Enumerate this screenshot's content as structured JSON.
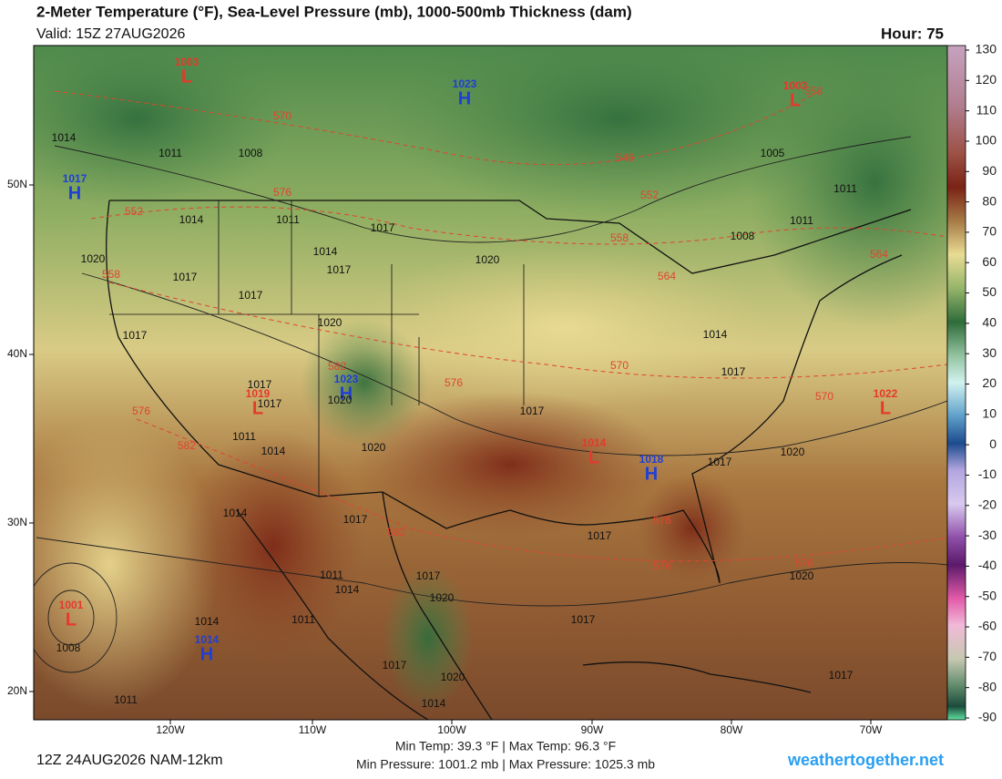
{
  "header": {
    "title": "2-Meter Temperature (°F), Sea-Level Pressure (mb), 1000-500mb Thickness (dam)",
    "valid": "Valid: 15Z 27AUG2026",
    "hour": "Hour: 75"
  },
  "map": {
    "lon_labels": [
      "120W",
      "110W",
      "100W",
      "90W",
      "80W",
      "70W"
    ],
    "lat_labels": [
      "50N",
      "40N",
      "30N",
      "20N"
    ],
    "pressure_centers": [
      {
        "symbol": "L",
        "value": "1003",
        "color": "#e5392c"
      },
      {
        "symbol": "H",
        "value": "1023",
        "color": "#1f3fd6"
      },
      {
        "symbol": "L",
        "value": "1003",
        "color": "#e5392c"
      },
      {
        "symbol": "H",
        "value": "1017",
        "color": "#1f3fd6"
      },
      {
        "symbol": "H",
        "value": "1023",
        "color": "#1f3fd6"
      },
      {
        "symbol": "L",
        "value": "1019",
        "color": "#e5392c"
      },
      {
        "symbol": "L",
        "value": "1014",
        "color": "#e5392c"
      },
      {
        "symbol": "H",
        "value": "1018",
        "color": "#1f3fd6"
      },
      {
        "symbol": "L",
        "value": "1022",
        "color": "#e5392c"
      },
      {
        "symbol": "L",
        "value": "1001",
        "color": "#e5392c"
      },
      {
        "symbol": "H",
        "value": "1014",
        "color": "#1f3fd6"
      }
    ],
    "isobar_labels": [
      "1014",
      "1011",
      "1008",
      "1014",
      "1011",
      "1017",
      "1014",
      "1017",
      "1020",
      "1020",
      "1017",
      "1017",
      "1020",
      "1017",
      "1017",
      "1020",
      "1017",
      "1017",
      "1011",
      "1014",
      "1020",
      "1017",
      "1020",
      "1014",
      "1017",
      "1017",
      "1011",
      "1014",
      "1017",
      "1020",
      "1017",
      "1020",
      "1014",
      "1011",
      "1008",
      "1011",
      "1017",
      "1020",
      "1014",
      "1005",
      "1011",
      "1011",
      "1008",
      "1014",
      "1017",
      "1017"
    ],
    "thickness_labels": [
      "570",
      "546",
      "552",
      "576",
      "552",
      "558",
      "558",
      "564",
      "564",
      "558",
      "582",
      "576",
      "570",
      "570",
      "576",
      "582",
      "582",
      "576",
      "576",
      "576"
    ]
  },
  "colorbar": {
    "ticks": [
      130,
      120,
      110,
      100,
      90,
      80,
      70,
      60,
      50,
      40,
      30,
      20,
      10,
      0,
      -10,
      -20,
      -30,
      -40,
      -50,
      -60,
      -70,
      -80,
      -90
    ],
    "lim": [
      -90,
      130
    ]
  },
  "footer": {
    "run": "12Z 24AUG2026 NAM-12km",
    "temps": "Min Temp: 39.3 °F | Max Temp: 96.3 °F",
    "pressures": "Min Pressure: 1001.2 mb | Max Pressure: 1025.3 mb",
    "site": "weathertogether.net"
  }
}
